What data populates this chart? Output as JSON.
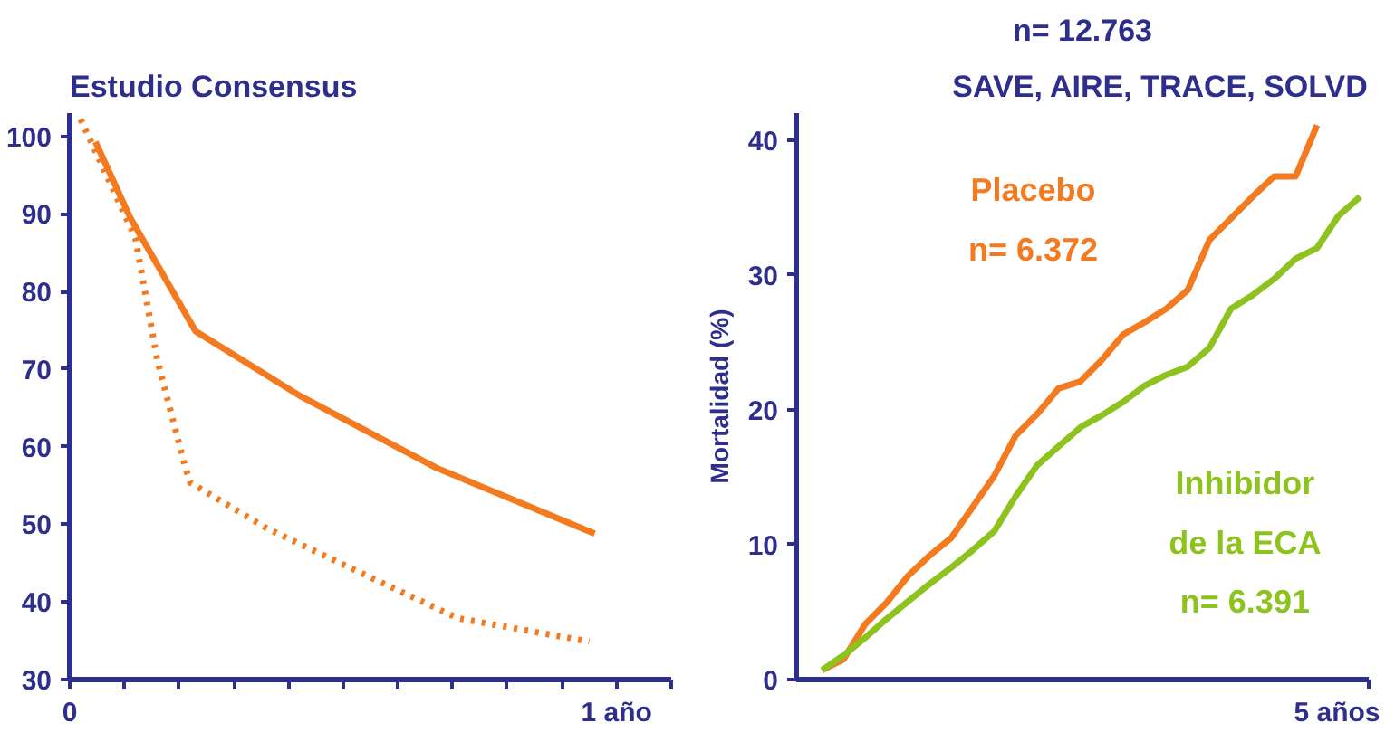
{
  "chart_data": [
    {
      "type": "line",
      "title": "Estudio Consensus",
      "xlim": [
        0,
        1.1
      ],
      "xticks": [
        {
          "value": 0,
          "label": "0"
        },
        {
          "value": 0.1,
          "label": null
        },
        {
          "value": 0.2,
          "label": null
        },
        {
          "value": 0.3,
          "label": null
        },
        {
          "value": 0.4,
          "label": null
        },
        {
          "value": 0.5,
          "label": null
        },
        {
          "value": 0.6,
          "label": null
        },
        {
          "value": 0.7,
          "label": null
        },
        {
          "value": 0.8,
          "label": null
        },
        {
          "value": 0.9,
          "label": null
        },
        {
          "value": 1,
          "label": "1 año"
        },
        {
          "value": 1.1,
          "label": null
        }
      ],
      "ylim": [
        30,
        103
      ],
      "yticks": [
        30,
        40,
        50,
        60,
        70,
        80,
        90,
        100
      ],
      "grid": false,
      "series": [
        {
          "color": "#f47a20",
          "line_style": "solid",
          "x": [
            0.047,
            0.11,
            0.23,
            0.42,
            0.67,
            0.96
          ],
          "values": [
            99.3,
            89.6,
            74.9,
            66.6,
            57.3,
            48.8
          ]
        },
        {
          "color": "#f47a20",
          "line_style": "dotted",
          "x": [
            0.02,
            0.12,
            0.16,
            0.21,
            0.22,
            0.36,
            0.54,
            0.71,
            0.95
          ],
          "values": [
            102.2,
            86.9,
            71.2,
            57.7,
            55.4,
            49.5,
            43.5,
            37.9,
            34.9
          ]
        }
      ]
    },
    {
      "type": "line",
      "title": "n= 12.763",
      "subtitle": "SAVE, AIRE, TRACE, SOLVD",
      "ylabel": "Mortalidad (%)",
      "categories": [
        null,
        null,
        null,
        null,
        null,
        null,
        null,
        null,
        null,
        null,
        null,
        null,
        null,
        null,
        null,
        null,
        null,
        null,
        null,
        null,
        null,
        null,
        null,
        null,
        null,
        null
      ],
      "ylim": [
        0,
        42
      ],
      "yticks": [
        0,
        10,
        20,
        30,
        40
      ],
      "grid": false,
      "series": [
        {
          "name": "Placebo\nn= 6.372",
          "color": "#f47a20",
          "line_style": "solid",
          "values": [
            0.7,
            1.5,
            4.1,
            5.7,
            7.7,
            9.2,
            10.5,
            12.8,
            15.1,
            18.1,
            19.7,
            21.6,
            22.1,
            23.7,
            25.6,
            26.5,
            27.5,
            28.9,
            32.6,
            34.2,
            35.8,
            37.3,
            37.3,
            41.1,
            null,
            null
          ]
        },
        {
          "name": "Inhibidor\nde la ECA\nn= 6.391",
          "color": "#8dc21f",
          "line_style": "solid",
          "values": [
            0.7,
            1.8,
            3.1,
            4.5,
            5.8,
            7.1,
            8.3,
            9.6,
            11.0,
            13.6,
            15.9,
            17.3,
            18.7,
            19.6,
            20.6,
            21.8,
            22.6,
            23.2,
            24.6,
            27.5,
            28.5,
            29.7,
            31.2,
            32.0,
            34.4,
            35.8
          ]
        }
      ],
      "annotations": [
        "5 años"
      ]
    }
  ]
}
